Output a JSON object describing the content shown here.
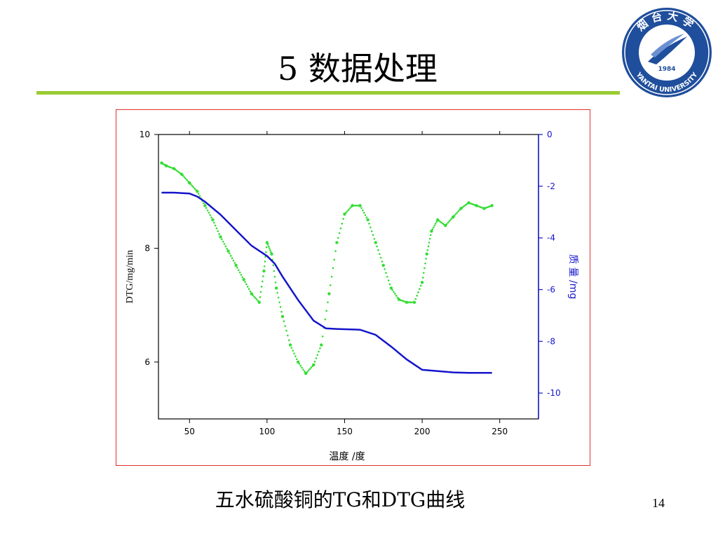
{
  "slide": {
    "title": "5 数据处理",
    "caption": "五水硫酸铜的TG和DTG曲线",
    "page_number": "14",
    "accent_color": "#99cc33",
    "frame_color": "#e03030"
  },
  "logo": {
    "text_top": "烟台大学",
    "text_bottom": "YANTAI UNIVERSITY",
    "year": "1984",
    "color": "#1f4e9c"
  },
  "chart_data": {
    "type": "line",
    "xlabel": "温度 /度",
    "ylabel_left": "DTG/mg/min",
    "ylabel_right": "质 量 /mg",
    "xlim": [
      30,
      275
    ],
    "ylim_left": [
      5,
      10
    ],
    "ylim_right": [
      -11,
      0
    ],
    "x_ticks": [
      50,
      100,
      150,
      200,
      250
    ],
    "y_ticks_left": [
      6,
      8,
      10
    ],
    "y_ticks_right": [
      0,
      -2,
      -4,
      -6,
      -8,
      -10
    ],
    "x_tick_labels": [
      "50",
      "100",
      "150",
      "200",
      "250"
    ],
    "y_tick_labels_left": [
      "6",
      "8",
      "10"
    ],
    "y_tick_labels_right": [
      "0",
      "-2",
      "-4",
      "-6",
      "-8",
      "-10"
    ],
    "series": [
      {
        "axis": "left",
        "color": "#33dd33",
        "style": "scatter",
        "x": [
          32,
          35,
          40,
          45,
          50,
          55,
          60,
          65,
          70,
          75,
          80,
          85,
          90,
          95,
          98,
          100,
          103,
          106,
          110,
          115,
          120,
          125,
          130,
          135,
          140,
          145,
          150,
          155,
          160,
          165,
          170,
          175,
          180,
          185,
          190,
          195,
          200,
          203,
          206,
          210,
          215,
          220,
          225,
          230,
          235,
          240,
          245
        ],
        "y": [
          9.5,
          9.45,
          9.4,
          9.3,
          9.15,
          9.0,
          8.75,
          8.5,
          8.2,
          7.95,
          7.7,
          7.45,
          7.2,
          7.05,
          7.6,
          8.1,
          7.9,
          7.3,
          6.8,
          6.3,
          6.0,
          5.8,
          5.95,
          6.3,
          7.2,
          8.1,
          8.6,
          8.75,
          8.75,
          8.5,
          8.1,
          7.7,
          7.3,
          7.1,
          7.05,
          7.05,
          7.4,
          7.9,
          8.3,
          8.5,
          8.4,
          8.55,
          8.7,
          8.8,
          8.75,
          8.7,
          8.75
        ]
      },
      {
        "axis": "right",
        "color": "#1515cc",
        "style": "line",
        "x": [
          32,
          40,
          50,
          55,
          60,
          70,
          80,
          90,
          100,
          105,
          110,
          120,
          130,
          138,
          145,
          160,
          170,
          180,
          190,
          200,
          210,
          220,
          230,
          245
        ],
        "y": [
          -2.25,
          -2.25,
          -2.28,
          -2.4,
          -2.6,
          -3.1,
          -3.7,
          -4.3,
          -4.7,
          -5.0,
          -5.5,
          -6.4,
          -7.2,
          -7.5,
          -7.52,
          -7.55,
          -7.75,
          -8.2,
          -8.7,
          -9.1,
          -9.15,
          -9.2,
          -9.22,
          -9.22
        ]
      }
    ]
  }
}
